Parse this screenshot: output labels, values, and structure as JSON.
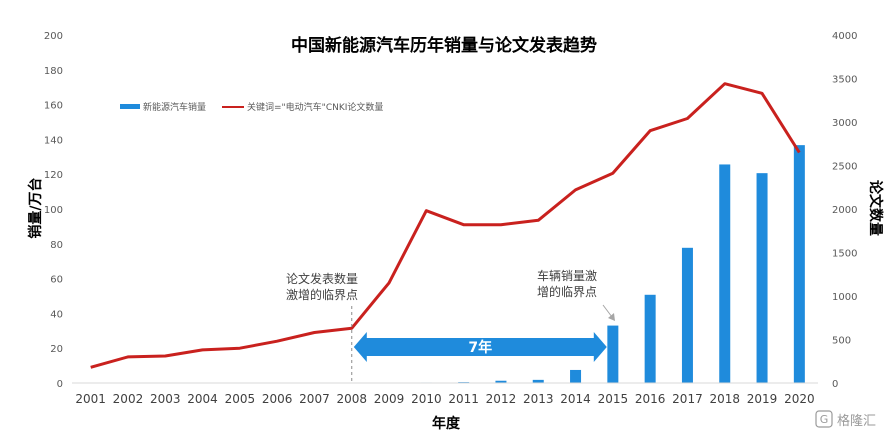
{
  "chart_data": {
    "type": "bar",
    "title": "中国新能源汽车历年销量与论文发表趋势",
    "xlabel": "年度",
    "ylabel": "销量/万台",
    "y2label": "论文数量",
    "categories": [
      "2001",
      "2002",
      "2003",
      "2004",
      "2005",
      "2006",
      "2007",
      "2008",
      "2009",
      "2010",
      "2011",
      "2012",
      "2013",
      "2014",
      "2015",
      "2016",
      "2017",
      "2018",
      "2019",
      "2020"
    ],
    "ylim": [
      0,
      200
    ],
    "y2lim": [
      0,
      4000
    ],
    "yticks": [
      "0",
      "20",
      "40",
      "60",
      "80",
      "100",
      "120",
      "140",
      "160",
      "180",
      "200"
    ],
    "y2ticks": [
      "0",
      "500",
      "1000",
      "1500",
      "2000",
      "2500",
      "3000",
      "3500",
      "4000"
    ],
    "series": [
      {
        "name": "新能源汽车销量",
        "type": "bar",
        "axis": "left",
        "color": "#1f8bdc",
        "values": [
          0,
          0,
          0,
          0,
          0,
          0,
          0,
          0,
          0.2,
          0.3,
          0.5,
          1.3,
          1.8,
          7.5,
          33,
          50.7,
          77.7,
          125.6,
          120.6,
          136.7
        ]
      },
      {
        "name": "关键词=\"电动汽车\"CNKI论文数量",
        "type": "line",
        "axis": "right",
        "color": "#c9211e",
        "values": [
          180,
          300,
          310,
          380,
          400,
          480,
          580,
          630,
          1150,
          1980,
          1820,
          1820,
          1870,
          2220,
          2410,
          2900,
          3040,
          3440,
          3330,
          2650
        ]
      }
    ],
    "annotations": [
      {
        "text_lines": [
          "论文发表数量",
          "激增的临界点"
        ],
        "year": "2008"
      },
      {
        "text_lines": [
          "车辆销量激",
          "增的临界点"
        ],
        "year": "2015"
      },
      {
        "text": "7年",
        "from": "2008",
        "to": "2015"
      }
    ],
    "legend_position": "top-left",
    "grid": false
  },
  "watermark": "格隆汇"
}
